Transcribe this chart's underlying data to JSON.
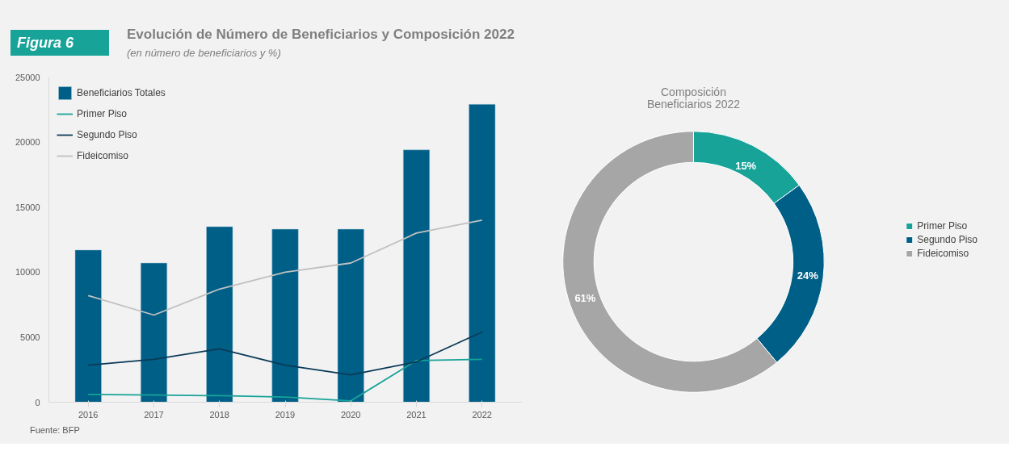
{
  "chart_data": [
    {
      "type": "bar",
      "title": "Evolución de Número de Beneficiarios y Composición 2022",
      "subtitle": "(en número de beneficiarios  y %)",
      "annotations": [
        "Figura 6",
        "Fuente: BFP"
      ],
      "categories": [
        "2016",
        "2017",
        "2018",
        "2019",
        "2020",
        "2021",
        "2022"
      ],
      "series": [
        {
          "name": "Beneficiarios Totales",
          "color": "#005f87",
          "values": [
            11700,
            10700,
            13500,
            13300,
            13300,
            19400,
            22900
          ]
        },
        {
          "name": "Primer Piso",
          "type": "line",
          "color": "#17a398",
          "values": [
            600,
            550,
            500,
            400,
            100,
            3200,
            3300
          ]
        },
        {
          "name": "Segundo Piso",
          "type": "line",
          "color": "#0b3a57",
          "values": [
            2850,
            3300,
            4100,
            2850,
            2100,
            3100,
            5400
          ]
        },
        {
          "name": "Fideicomiso",
          "type": "line",
          "color": "#c0c0c0",
          "values": [
            8200,
            6700,
            8700,
            10000,
            10700,
            13000,
            14000
          ]
        }
      ],
      "ylim": [
        0,
        25000
      ],
      "yticks": [
        0,
        5000,
        10000,
        15000,
        20000,
        25000
      ],
      "grid": false,
      "legend": "top left"
    },
    {
      "type": "donut",
      "title": "Composición\nBeneficiarios 2022",
      "categories": [
        "Primer Piso",
        "Segundo Piso",
        "Fideicomiso"
      ],
      "values": [
        15,
        24,
        61
      ],
      "colors": [
        "#17a398",
        "#005f87",
        "#a6a6a6"
      ],
      "value_labels": [
        "15%",
        "24%",
        "61%"
      ],
      "legend": "right"
    }
  ]
}
